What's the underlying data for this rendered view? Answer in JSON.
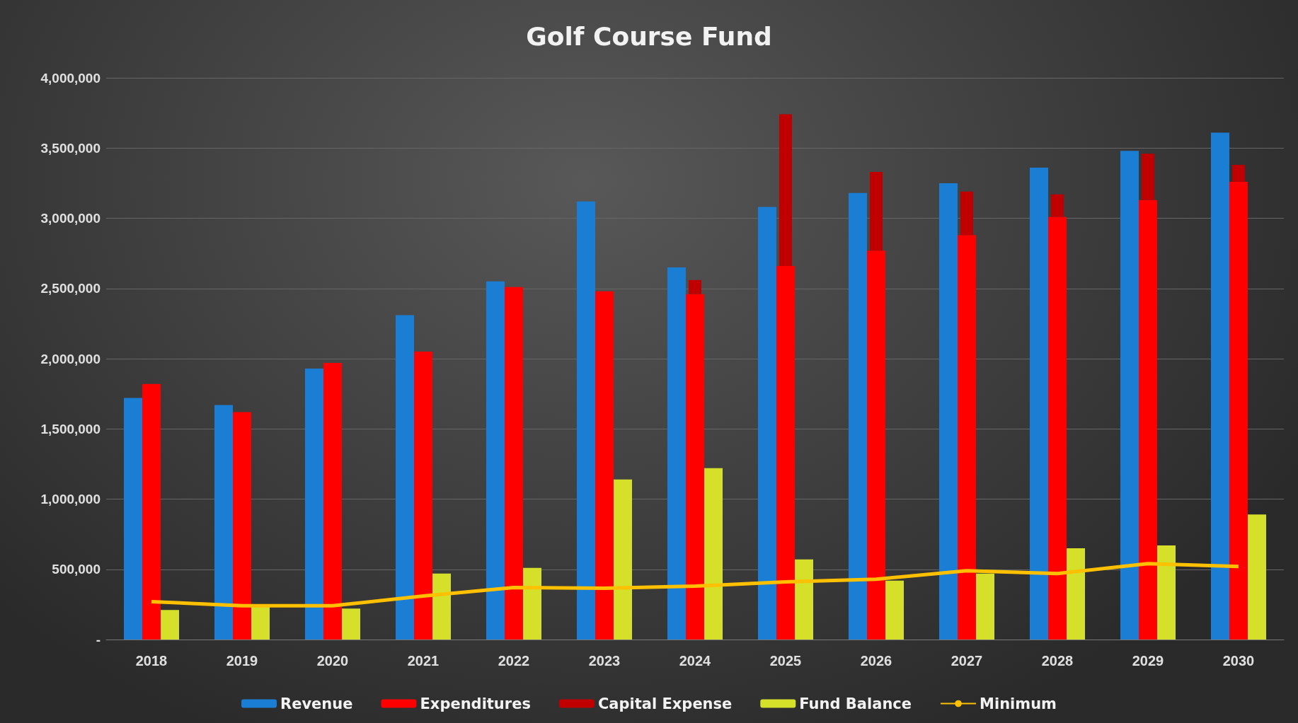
{
  "chart_data": {
    "type": "bar",
    "title": "Golf Course Fund",
    "categories": [
      "2018",
      "2019",
      "2020",
      "2021",
      "2022",
      "2023",
      "2024",
      "2025",
      "2026",
      "2027",
      "2028",
      "2029",
      "2030"
    ],
    "series": [
      {
        "name": "Revenue",
        "color": "#1a7fd4",
        "values": [
          1720000,
          1670000,
          1930000,
          2310000,
          2550000,
          3120000,
          2650000,
          3080000,
          3180000,
          3250000,
          3360000,
          3480000,
          3610000
        ]
      },
      {
        "name": "Expenditures",
        "color": "#ff0000",
        "values": [
          1820000,
          1620000,
          1970000,
          2050000,
          2510000,
          2480000,
          2460000,
          2660000,
          2770000,
          2880000,
          3010000,
          3130000,
          3260000
        ]
      },
      {
        "name": "Capital Expense",
        "color": "#c00000",
        "base": [
          null,
          null,
          null,
          null,
          null,
          null,
          2460000,
          2660000,
          2770000,
          2880000,
          3010000,
          3130000,
          3260000
        ],
        "values": [
          null,
          null,
          null,
          null,
          null,
          null,
          100000,
          1080000,
          560000,
          310000,
          160000,
          330000,
          120000
        ]
      },
      {
        "name": "Fund Balance",
        "color": "#d4e02a",
        "values": [
          210000,
          240000,
          220000,
          470000,
          510000,
          1140000,
          1220000,
          570000,
          420000,
          470000,
          650000,
          670000,
          890000
        ]
      },
      {
        "name": "Minimum",
        "type": "line",
        "color": "#ffc000",
        "marker": "none",
        "values": [
          270000,
          240000,
          240000,
          310000,
          370000,
          365000,
          380000,
          410000,
          430000,
          490000,
          470000,
          540000,
          520000
        ]
      }
    ],
    "ylim": [
      0,
      4000000
    ],
    "yticks": [
      {
        "value": 0,
        "label": "-"
      },
      {
        "value": 500000,
        "label": "500,000"
      },
      {
        "value": 1000000,
        "label": "1,000,000"
      },
      {
        "value": 1500000,
        "label": "1,500,000"
      },
      {
        "value": 2000000,
        "label": "2,000,000"
      },
      {
        "value": 2500000,
        "label": "2,500,000"
      },
      {
        "value": 3000000,
        "label": "3,000,000"
      },
      {
        "value": 3500000,
        "label": "3,500,000"
      },
      {
        "value": 4000000,
        "label": "4,000,000"
      }
    ],
    "grid": "y",
    "legend": "bottom"
  }
}
